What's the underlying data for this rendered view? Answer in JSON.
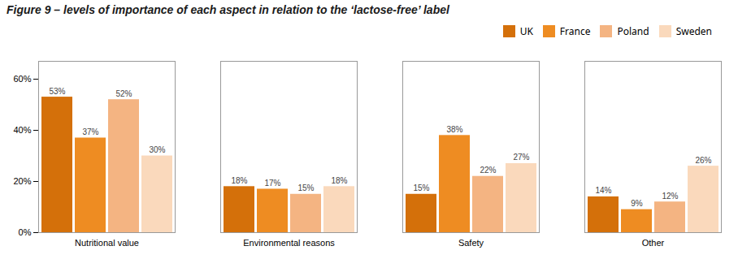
{
  "chart_data": {
    "type": "bar",
    "title": "Figure 9 – levels of importance of each aspect in relation to the ‘lactose-free’ label",
    "categories": [
      "Nutritional value",
      "Environmental reasons",
      "Safety",
      "Other"
    ],
    "series": [
      {
        "name": "UK",
        "color": "#D4700A",
        "values": [
          53,
          18,
          15,
          14
        ],
        "value_labels": [
          "53%",
          "18%",
          "15%",
          "14%"
        ]
      },
      {
        "name": "France",
        "color": "#EE8C22",
        "values": [
          37,
          17,
          38,
          9
        ],
        "value_labels": [
          "37%",
          "17%",
          "38%",
          "9%"
        ]
      },
      {
        "name": "Poland",
        "color": "#F4B482",
        "values": [
          52,
          15,
          22,
          12
        ],
        "value_labels": [
          "52%",
          "15%",
          "22%",
          "12%"
        ]
      },
      {
        "name": "Sweden",
        "color": "#FAD9BC",
        "values": [
          30,
          18,
          27,
          26
        ],
        "value_labels": [
          "30%",
          "18%",
          "27%",
          "26%"
        ]
      }
    ],
    "ylim": [
      0,
      67
    ],
    "yticks": [
      {
        "value": 0,
        "label": "0%"
      },
      {
        "value": 20,
        "label": "20%"
      },
      {
        "value": 40,
        "label": "40%"
      },
      {
        "value": 60,
        "label": "60%"
      }
    ],
    "grid": false,
    "legend": "upper right",
    "data_labels": true
  }
}
